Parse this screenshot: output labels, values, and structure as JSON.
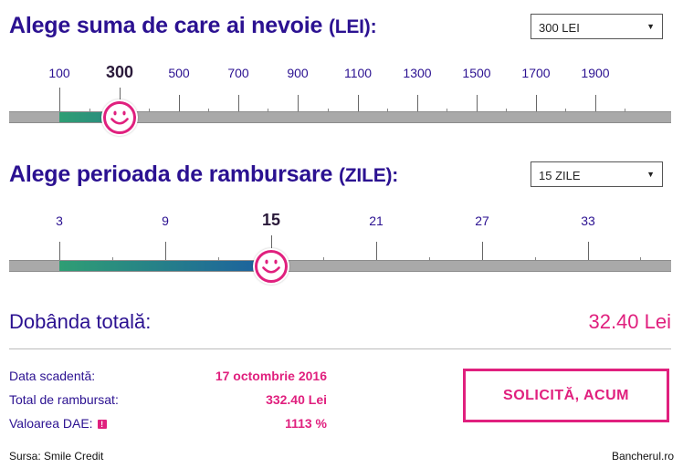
{
  "amount": {
    "title": "Alege suma de care ai nevoie",
    "unit": "(LEI):",
    "select_value": "300 LEI",
    "ticks": [
      "100",
      "300",
      "500",
      "700",
      "900",
      "1100",
      "1300",
      "1500",
      "1700",
      "1900"
    ],
    "active_tick": "300",
    "selected": 300,
    "min": 100,
    "max": 1900
  },
  "period": {
    "title": "Alege perioada de rambursare",
    "unit": "(ZILE):",
    "select_value": "15 ZILE",
    "ticks": [
      "3",
      "9",
      "15",
      "21",
      "27",
      "33"
    ],
    "active_tick": "15",
    "selected": 15,
    "min": 3
  },
  "summary": {
    "interest_label": "Dobânda totală:",
    "interest_value": "32.40 Lei",
    "rows": [
      {
        "label": "Data scadentă:",
        "value": "17 octombrie 2016"
      },
      {
        "label": "Total de rambursat:",
        "value": "332.40 Lei"
      },
      {
        "label": "Valoarea DAE:",
        "value": "1113 %"
      }
    ],
    "info_icon": "!"
  },
  "cta_label": "SOLICITĂ, ACUM",
  "footer": {
    "source": "Sursa: Smile Credit",
    "brand": "Bancherul.ro"
  },
  "colors": {
    "heading": "#2b1191",
    "accent": "#e0207e",
    "fill_start": "#2f9e74",
    "fill_end": "#1b5fa0",
    "track": "#a9a9a9"
  }
}
